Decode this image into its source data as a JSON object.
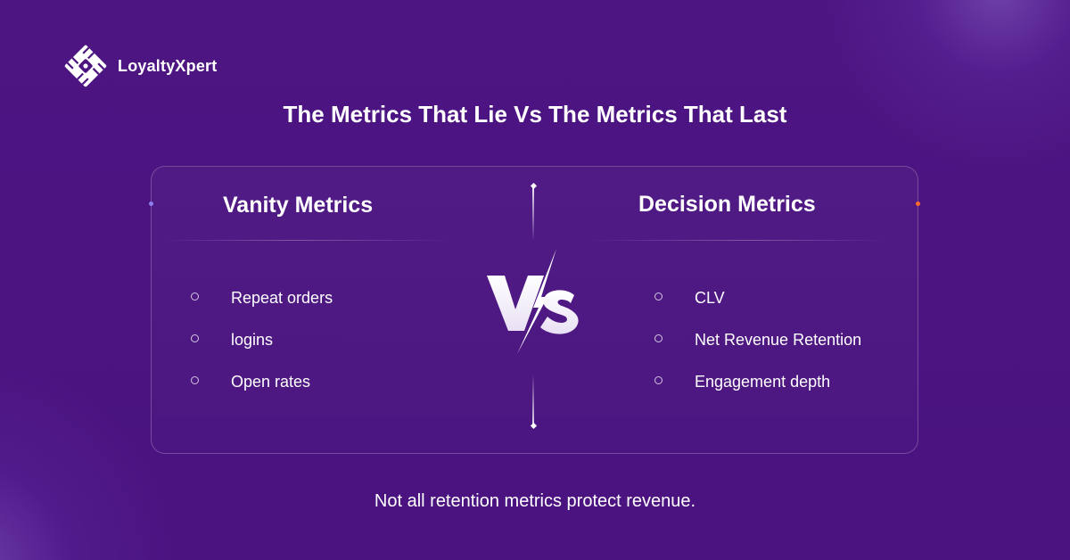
{
  "brand": {
    "name": "LoyaltyXpert"
  },
  "title": "The Metrics That Lie Vs The Metrics That Last",
  "left_column": {
    "heading": "Vanity Metrics",
    "items": [
      "Repeat orders",
      "logins",
      "Open rates"
    ]
  },
  "right_column": {
    "heading": "Decision Metrics",
    "items": [
      "CLV",
      "Net Revenue Retention",
      "Engagement depth"
    ]
  },
  "vs_graphic": "vs-icon",
  "footer": "Not all retention metrics protect revenue.",
  "colors": {
    "background": "#4b1480",
    "text": "#ffffff",
    "accent_left_dot": "#8f7ff0",
    "accent_right_dot": "#ff6a2a"
  }
}
